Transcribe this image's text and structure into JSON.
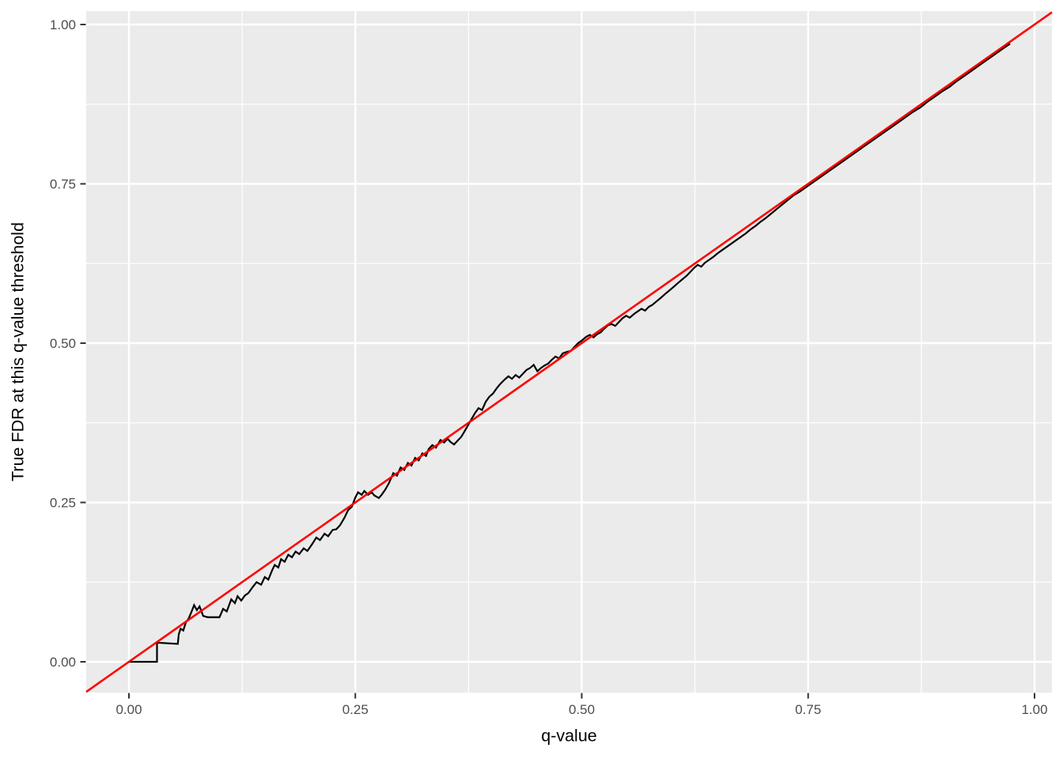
{
  "chart_data": {
    "type": "line",
    "title": "",
    "xlabel": "q-value",
    "ylabel": "True FDR at this q-value threshold",
    "x_axis": {
      "tick_values": [
        0,
        0.25,
        0.5,
        0.75,
        1.0
      ],
      "tick_labels": [
        "0.00",
        "0.25",
        "0.50",
        "0.75",
        "1.00"
      ],
      "minor_tick_values": [
        0.125,
        0.375,
        0.625,
        0.875
      ]
    },
    "y_axis": {
      "tick_values": [
        0,
        0.25,
        0.5,
        0.75,
        1.0
      ],
      "tick_labels": [
        "0.00",
        "0.25",
        "0.50",
        "0.75",
        "1.00"
      ],
      "minor_tick_values": [
        0.125,
        0.375,
        0.625,
        0.875
      ]
    },
    "xlim": [
      -0.047,
      1.019
    ],
    "ylim": [
      -0.048,
      1.021
    ],
    "grid": "white major and minor gridlines on grey panel",
    "legend": "none",
    "style": {
      "panel_background": "#EBEBEB",
      "figure_background": "#FFFFFF",
      "grid_color": "#FFFFFF",
      "tick_mark_color": "#333333",
      "tick_label_color": "#4D4D4D",
      "axis_title_color": "#000000",
      "fdr_line_color": "#000000",
      "identity_line_color": "#FF0000"
    },
    "series": [
      {
        "name": "true-fdr-curve",
        "description": "Observed (true) FDR at each q-value cutoff; jagged empirical step line",
        "color": "#000000",
        "points": [
          [
            0.0,
            0.0
          ],
          [
            0.031,
            0.0
          ],
          [
            0.031,
            0.03
          ],
          [
            0.054,
            0.028
          ],
          [
            0.055,
            0.043
          ],
          [
            0.057,
            0.052
          ],
          [
            0.06,
            0.049
          ],
          [
            0.063,
            0.062
          ],
          [
            0.066,
            0.068
          ],
          [
            0.069,
            0.078
          ],
          [
            0.072,
            0.089
          ],
          [
            0.075,
            0.081
          ],
          [
            0.078,
            0.087
          ],
          [
            0.082,
            0.072
          ],
          [
            0.087,
            0.07
          ],
          [
            0.1,
            0.07
          ],
          [
            0.104,
            0.083
          ],
          [
            0.108,
            0.079
          ],
          [
            0.113,
            0.098
          ],
          [
            0.117,
            0.092
          ],
          [
            0.12,
            0.103
          ],
          [
            0.124,
            0.096
          ],
          [
            0.128,
            0.104
          ],
          [
            0.132,
            0.108
          ],
          [
            0.137,
            0.118
          ],
          [
            0.141,
            0.125
          ],
          [
            0.146,
            0.121
          ],
          [
            0.15,
            0.133
          ],
          [
            0.154,
            0.129
          ],
          [
            0.158,
            0.143
          ],
          [
            0.161,
            0.152
          ],
          [
            0.165,
            0.148
          ],
          [
            0.168,
            0.161
          ],
          [
            0.172,
            0.157
          ],
          [
            0.176,
            0.168
          ],
          [
            0.18,
            0.164
          ],
          [
            0.184,
            0.173
          ],
          [
            0.188,
            0.169
          ],
          [
            0.193,
            0.178
          ],
          [
            0.197,
            0.174
          ],
          [
            0.202,
            0.184
          ],
          [
            0.207,
            0.195
          ],
          [
            0.211,
            0.191
          ],
          [
            0.216,
            0.201
          ],
          [
            0.22,
            0.197
          ],
          [
            0.225,
            0.207
          ],
          [
            0.229,
            0.208
          ],
          [
            0.233,
            0.214
          ],
          [
            0.238,
            0.226
          ],
          [
            0.242,
            0.238
          ],
          [
            0.246,
            0.243
          ],
          [
            0.25,
            0.258
          ],
          [
            0.253,
            0.266
          ],
          [
            0.257,
            0.262
          ],
          [
            0.26,
            0.268
          ],
          [
            0.264,
            0.262
          ],
          [
            0.268,
            0.266
          ],
          [
            0.271,
            0.261
          ],
          [
            0.276,
            0.257
          ],
          [
            0.279,
            0.262
          ],
          [
            0.283,
            0.27
          ],
          [
            0.287,
            0.28
          ],
          [
            0.292,
            0.296
          ],
          [
            0.296,
            0.292
          ],
          [
            0.3,
            0.305
          ],
          [
            0.304,
            0.301
          ],
          [
            0.308,
            0.312
          ],
          [
            0.312,
            0.308
          ],
          [
            0.316,
            0.32
          ],
          [
            0.32,
            0.316
          ],
          [
            0.324,
            0.327
          ],
          [
            0.328,
            0.323
          ],
          [
            0.331,
            0.334
          ],
          [
            0.335,
            0.34
          ],
          [
            0.339,
            0.336
          ],
          [
            0.344,
            0.348
          ],
          [
            0.348,
            0.344
          ],
          [
            0.352,
            0.35
          ],
          [
            0.355,
            0.345
          ],
          [
            0.359,
            0.341
          ],
          [
            0.363,
            0.347
          ],
          [
            0.367,
            0.353
          ],
          [
            0.37,
            0.36
          ],
          [
            0.374,
            0.37
          ],
          [
            0.378,
            0.38
          ],
          [
            0.382,
            0.39
          ],
          [
            0.386,
            0.398
          ],
          [
            0.39,
            0.395
          ],
          [
            0.394,
            0.408
          ],
          [
            0.398,
            0.416
          ],
          [
            0.402,
            0.421
          ],
          [
            0.406,
            0.429
          ],
          [
            0.41,
            0.436
          ],
          [
            0.415,
            0.443
          ],
          [
            0.419,
            0.448
          ],
          [
            0.423,
            0.444
          ],
          [
            0.427,
            0.45
          ],
          [
            0.431,
            0.446
          ],
          [
            0.435,
            0.452
          ],
          [
            0.439,
            0.458
          ],
          [
            0.443,
            0.461
          ],
          [
            0.447,
            0.466
          ],
          [
            0.451,
            0.456
          ],
          [
            0.455,
            0.461
          ],
          [
            0.459,
            0.465
          ],
          [
            0.463,
            0.468
          ],
          [
            0.467,
            0.474
          ],
          [
            0.471,
            0.479
          ],
          [
            0.475,
            0.476
          ],
          [
            0.479,
            0.484
          ],
          [
            0.483,
            0.486
          ],
          [
            0.488,
            0.488
          ],
          [
            0.492,
            0.494
          ],
          [
            0.496,
            0.5
          ],
          [
            0.5,
            0.504
          ],
          [
            0.505,
            0.51
          ],
          [
            0.509,
            0.513
          ],
          [
            0.513,
            0.509
          ],
          [
            0.517,
            0.514
          ],
          [
            0.521,
            0.517
          ],
          [
            0.525,
            0.523
          ],
          [
            0.529,
            0.528
          ],
          [
            0.533,
            0.53
          ],
          [
            0.537,
            0.527
          ],
          [
            0.541,
            0.533
          ],
          [
            0.545,
            0.539
          ],
          [
            0.549,
            0.543
          ],
          [
            0.553,
            0.54
          ],
          [
            0.558,
            0.546
          ],
          [
            0.562,
            0.55
          ],
          [
            0.566,
            0.554
          ],
          [
            0.57,
            0.551
          ],
          [
            0.574,
            0.557
          ],
          [
            0.578,
            0.56
          ],
          [
            0.583,
            0.566
          ],
          [
            0.588,
            0.572
          ],
          [
            0.592,
            0.577
          ],
          [
            0.597,
            0.583
          ],
          [
            0.602,
            0.589
          ],
          [
            0.606,
            0.594
          ],
          [
            0.611,
            0.6
          ],
          [
            0.616,
            0.606
          ],
          [
            0.62,
            0.612
          ],
          [
            0.624,
            0.618
          ],
          [
            0.628,
            0.623
          ],
          [
            0.632,
            0.62
          ],
          [
            0.636,
            0.626
          ],
          [
            0.641,
            0.631
          ],
          [
            0.645,
            0.635
          ],
          [
            0.65,
            0.641
          ],
          [
            0.655,
            0.646
          ],
          [
            0.66,
            0.651
          ],
          [
            0.665,
            0.656
          ],
          [
            0.67,
            0.661
          ],
          [
            0.675,
            0.666
          ],
          [
            0.681,
            0.672
          ],
          [
            0.686,
            0.678
          ],
          [
            0.692,
            0.684
          ],
          [
            0.697,
            0.69
          ],
          [
            0.703,
            0.696
          ],
          [
            0.709,
            0.703
          ],
          [
            0.715,
            0.71
          ],
          [
            0.721,
            0.717
          ],
          [
            0.727,
            0.724
          ],
          [
            0.734,
            0.732
          ],
          [
            0.741,
            0.738
          ],
          [
            0.748,
            0.745
          ],
          [
            0.755,
            0.752
          ],
          [
            0.762,
            0.759
          ],
          [
            0.769,
            0.766
          ],
          [
            0.776,
            0.773
          ],
          [
            0.783,
            0.78
          ],
          [
            0.79,
            0.787
          ],
          [
            0.797,
            0.794
          ],
          [
            0.805,
            0.802
          ],
          [
            0.812,
            0.809
          ],
          [
            0.82,
            0.817
          ],
          [
            0.827,
            0.824
          ],
          [
            0.835,
            0.832
          ],
          [
            0.842,
            0.839
          ],
          [
            0.85,
            0.847
          ],
          [
            0.858,
            0.855
          ],
          [
            0.866,
            0.863
          ],
          [
            0.874,
            0.87
          ],
          [
            0.882,
            0.879
          ],
          [
            0.89,
            0.887
          ],
          [
            0.898,
            0.895
          ],
          [
            0.906,
            0.902
          ],
          [
            0.914,
            0.911
          ],
          [
            0.922,
            0.919
          ],
          [
            0.93,
            0.927
          ],
          [
            0.938,
            0.935
          ],
          [
            0.947,
            0.944
          ],
          [
            0.956,
            0.953
          ],
          [
            0.964,
            0.961
          ],
          [
            0.973,
            0.97
          ]
        ]
      },
      {
        "name": "identity-reference-line",
        "description": "y = x reference diagonal",
        "color": "#FF0000",
        "abline": {
          "intercept": 0,
          "slope": 1
        }
      }
    ]
  }
}
